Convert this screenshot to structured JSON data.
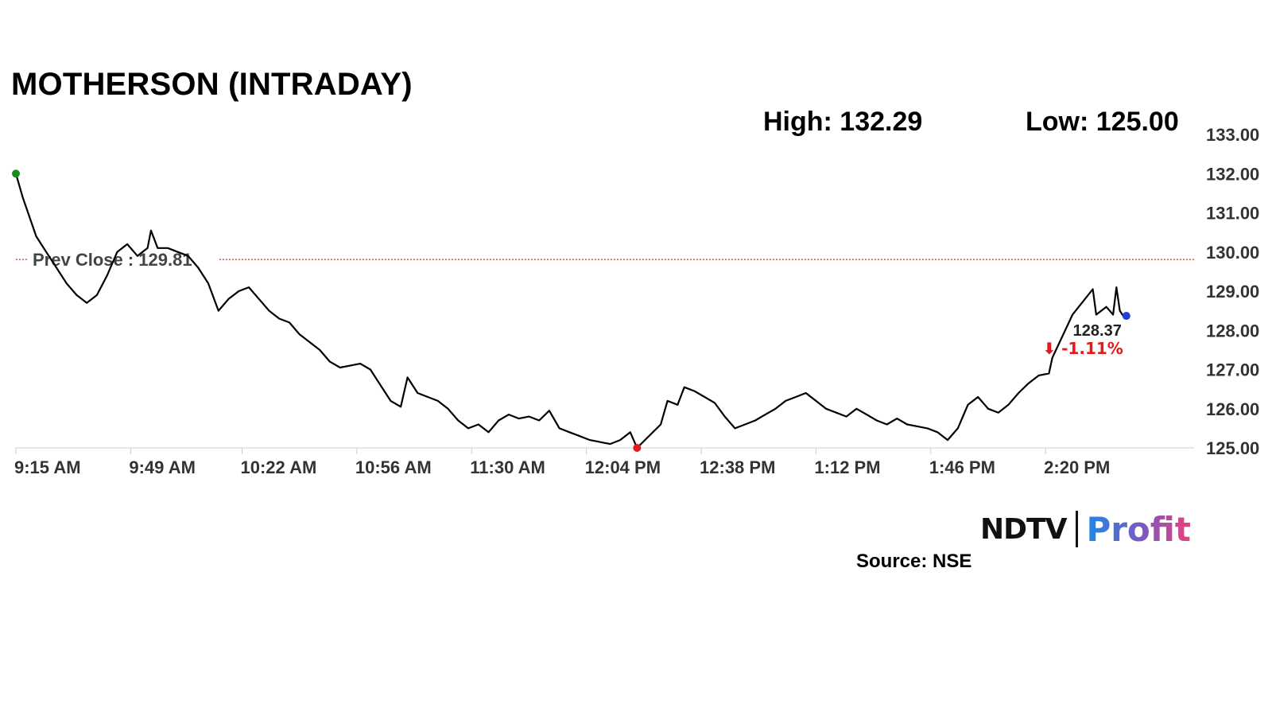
{
  "header": {
    "title": "MOTHERSON (INTRADAY)",
    "high_text": "High: 132.29",
    "low_text": "Low: 125.00"
  },
  "footer": {
    "source": "Source: NSE",
    "logo_left": "NDTV",
    "logo_right": "Profit"
  },
  "colors": {
    "line": "#000000",
    "prev_close": "#c0392b",
    "open_marker": "#1a8a1a",
    "low_marker": "#e41a1c",
    "last_marker": "#1f3fd6",
    "change_negative": "#e41a1c",
    "axis": "#cccccc"
  },
  "chart_data": {
    "type": "line",
    "title": "MOTHERSON (INTRADAY)",
    "xlabel": "",
    "ylabel": "",
    "x_ticks": [
      "9:15 AM",
      "9:49 AM",
      "10:22 AM",
      "10:56 AM",
      "11:30 AM",
      "12:04 PM",
      "12:38 PM",
      "1:12 PM",
      "1:46 PM",
      "2:20 PM"
    ],
    "y_ticks": [
      "125.00",
      "126.00",
      "127.00",
      "128.00",
      "129.00",
      "130.00",
      "131.00",
      "132.00",
      "133.00"
    ],
    "ylim": [
      125,
      133
    ],
    "xlim": [
      "9:15 AM",
      "3:04 PM"
    ],
    "grid": false,
    "prev_close": 129.81,
    "prev_close_label": "Prev Close : 129.81",
    "high": 132.29,
    "low": 125.0,
    "last_price": "128.37",
    "change_pct": "⬇ -1.11%",
    "series": [
      {
        "values": [
          [
            "9:15 AM",
            132.0
          ],
          [
            "9:17 AM",
            131.4
          ],
          [
            "9:19 AM",
            130.9
          ],
          [
            "9:21 AM",
            130.4
          ],
          [
            "9:24 AM",
            130.0
          ],
          [
            "9:27 AM",
            129.6
          ],
          [
            "9:30 AM",
            129.2
          ],
          [
            "9:33 AM",
            128.9
          ],
          [
            "9:36 AM",
            128.7
          ],
          [
            "9:39 AM",
            128.9
          ],
          [
            "9:42 AM",
            129.4
          ],
          [
            "9:45 AM",
            130.0
          ],
          [
            "9:48 AM",
            130.2
          ],
          [
            "9:51 AM",
            129.9
          ],
          [
            "9:54 AM",
            130.1
          ],
          [
            "9:55 AM",
            130.55
          ],
          [
            "9:57 AM",
            130.1
          ],
          [
            "10:00 AM",
            130.1
          ],
          [
            "10:03 AM",
            130.0
          ],
          [
            "10:06 AM",
            129.9
          ],
          [
            "10:09 AM",
            129.6
          ],
          [
            "10:12 AM",
            129.2
          ],
          [
            "10:15 AM",
            128.5
          ],
          [
            "10:18 AM",
            128.8
          ],
          [
            "10:21 AM",
            129.0
          ],
          [
            "10:24 AM",
            129.1
          ],
          [
            "10:27 AM",
            128.8
          ],
          [
            "10:30 AM",
            128.5
          ],
          [
            "10:33 AM",
            128.3
          ],
          [
            "10:36 AM",
            128.2
          ],
          [
            "10:39 AM",
            127.9
          ],
          [
            "10:42 AM",
            127.7
          ],
          [
            "10:45 AM",
            127.5
          ],
          [
            "10:48 AM",
            127.2
          ],
          [
            "10:51 AM",
            127.05
          ],
          [
            "10:54 AM",
            127.1
          ],
          [
            "10:57 AM",
            127.15
          ],
          [
            "11:00 AM",
            127.0
          ],
          [
            "11:03 AM",
            126.6
          ],
          [
            "11:06 AM",
            126.2
          ],
          [
            "11:09 AM",
            126.05
          ],
          [
            "11:11 AM",
            126.8
          ],
          [
            "11:14 AM",
            126.4
          ],
          [
            "11:17 AM",
            126.3
          ],
          [
            "11:20 AM",
            126.2
          ],
          [
            "11:23 AM",
            126.0
          ],
          [
            "11:26 AM",
            125.7
          ],
          [
            "11:29 AM",
            125.5
          ],
          [
            "11:32 AM",
            125.6
          ],
          [
            "11:35 AM",
            125.4
          ],
          [
            "11:38 AM",
            125.7
          ],
          [
            "11:41 AM",
            125.85
          ],
          [
            "11:44 AM",
            125.75
          ],
          [
            "11:47 AM",
            125.8
          ],
          [
            "11:50 AM",
            125.7
          ],
          [
            "11:53 AM",
            125.95
          ],
          [
            "11:56 AM",
            125.5
          ],
          [
            "11:59 AM",
            125.4
          ],
          [
            "12:02 PM",
            125.3
          ],
          [
            "12:05 PM",
            125.2
          ],
          [
            "12:08 PM",
            125.15
          ],
          [
            "12:11 PM",
            125.1
          ],
          [
            "12:14 PM",
            125.2
          ],
          [
            "12:17 PM",
            125.4
          ],
          [
            "12:19 PM",
            125.0
          ],
          [
            "12:26 PM",
            125.6
          ],
          [
            "12:28 PM",
            126.2
          ],
          [
            "12:31 PM",
            126.1
          ],
          [
            "12:33 PM",
            126.55
          ],
          [
            "12:36 PM",
            126.45
          ],
          [
            "12:39 PM",
            126.3
          ],
          [
            "12:42 PM",
            126.15
          ],
          [
            "12:45 PM",
            125.8
          ],
          [
            "12:48 PM",
            125.5
          ],
          [
            "12:51 PM",
            125.6
          ],
          [
            "12:54 PM",
            125.7
          ],
          [
            "12:57 PM",
            125.85
          ],
          [
            "1:00 PM",
            126.0
          ],
          [
            "1:03 PM",
            126.2
          ],
          [
            "1:06 PM",
            126.3
          ],
          [
            "1:09 PM",
            126.4
          ],
          [
            "1:12 PM",
            126.2
          ],
          [
            "1:15 PM",
            126.0
          ],
          [
            "1:18 PM",
            125.9
          ],
          [
            "1:21 PM",
            125.8
          ],
          [
            "1:24 PM",
            126.0
          ],
          [
            "1:27 PM",
            125.85
          ],
          [
            "1:30 PM",
            125.7
          ],
          [
            "1:33 PM",
            125.6
          ],
          [
            "1:36 PM",
            125.75
          ],
          [
            "1:39 PM",
            125.6
          ],
          [
            "1:42 PM",
            125.55
          ],
          [
            "1:45 PM",
            125.5
          ],
          [
            "1:48 PM",
            125.4
          ],
          [
            "1:51 PM",
            125.2
          ],
          [
            "1:54 PM",
            125.5
          ],
          [
            "1:57 PM",
            126.1
          ],
          [
            "2:00 PM",
            126.3
          ],
          [
            "2:03 PM",
            126.0
          ],
          [
            "2:06 PM",
            125.9
          ],
          [
            "2:09 PM",
            126.1
          ],
          [
            "2:12 PM",
            126.4
          ],
          [
            "2:15 PM",
            126.65
          ],
          [
            "2:18 PM",
            126.85
          ],
          [
            "2:21 PM",
            126.9
          ],
          [
            "2:22 PM",
            127.3
          ],
          [
            "2:28 PM",
            128.4
          ],
          [
            "2:34 PM",
            129.05
          ],
          [
            "2:35 PM",
            128.4
          ],
          [
            "2:38 PM",
            128.6
          ],
          [
            "2:40 PM",
            128.4
          ],
          [
            "2:41 PM",
            129.1
          ],
          [
            "2:42 PM",
            128.5
          ],
          [
            "2:43 PM",
            128.37
          ]
        ]
      }
    ]
  }
}
